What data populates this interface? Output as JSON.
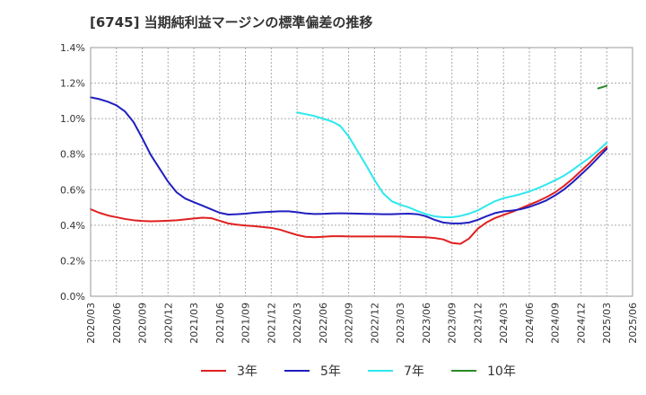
{
  "chart_data": {
    "type": "line",
    "title": "[6745]  当期純利益マージンの標準偏差の推移",
    "xlabel": "",
    "ylabel": "",
    "ylim": [
      0,
      1.4
    ],
    "y_unit": "%",
    "y_ticks": [
      0,
      0.2,
      0.4,
      0.6,
      0.8,
      1.0,
      1.2,
      1.4
    ],
    "y_tick_labels": [
      "0.0%",
      "0.2%",
      "0.4%",
      "0.6%",
      "0.8%",
      "1.0%",
      "1.2%",
      "1.4%"
    ],
    "x_tick_labels": [
      "2020/03",
      "2020/06",
      "2020/09",
      "2020/12",
      "2021/03",
      "2021/06",
      "2021/09",
      "2021/12",
      "2022/03",
      "2022/06",
      "2022/09",
      "2022/12",
      "2023/03",
      "2023/06",
      "2023/09",
      "2023/12",
      "2024/03",
      "2024/06",
      "2024/09",
      "2024/12",
      "2025/03",
      "2025/06"
    ],
    "grid": true,
    "legend_position": "bottom",
    "months": [
      "2020/03",
      "2020/04",
      "2020/05",
      "2020/06",
      "2020/07",
      "2020/08",
      "2020/09",
      "2020/10",
      "2020/11",
      "2020/12",
      "2021/01",
      "2021/02",
      "2021/03",
      "2021/04",
      "2021/05",
      "2021/06",
      "2021/07",
      "2021/08",
      "2021/09",
      "2021/10",
      "2021/11",
      "2021/12",
      "2022/01",
      "2022/02",
      "2022/03",
      "2022/04",
      "2022/05",
      "2022/06",
      "2022/07",
      "2022/08",
      "2022/09",
      "2022/10",
      "2022/11",
      "2022/12",
      "2023/01",
      "2023/02",
      "2023/03",
      "2023/04",
      "2023/05",
      "2023/06",
      "2023/07",
      "2023/08",
      "2023/09",
      "2023/10",
      "2023/11",
      "2023/12",
      "2024/01",
      "2024/02",
      "2024/03",
      "2024/04",
      "2024/05",
      "2024/06",
      "2024/07",
      "2024/08",
      "2024/09",
      "2024/10",
      "2024/11",
      "2024/12",
      "2025/01",
      "2025/02",
      "2025/03"
    ],
    "series": [
      {
        "name": "3年",
        "color": "#e02020",
        "values": [
          0.49,
          0.47,
          0.455,
          0.445,
          0.435,
          0.428,
          0.424,
          0.422,
          0.423,
          0.425,
          0.428,
          0.433,
          0.438,
          0.442,
          0.44,
          0.425,
          0.41,
          0.403,
          0.398,
          0.395,
          0.39,
          0.385,
          0.375,
          0.36,
          0.345,
          0.335,
          0.332,
          0.335,
          0.338,
          0.338,
          0.337,
          0.337,
          0.337,
          0.337,
          0.337,
          0.337,
          0.336,
          0.334,
          0.333,
          0.332,
          0.328,
          0.32,
          0.3,
          0.295,
          0.325,
          0.38,
          0.415,
          0.44,
          0.458,
          0.475,
          0.495,
          0.515,
          0.535,
          0.558,
          0.585,
          0.62,
          0.66,
          0.705,
          0.75,
          0.8,
          0.84
        ]
      },
      {
        "name": "5年",
        "color": "#1f1fbf",
        "values": [
          1.12,
          1.11,
          1.095,
          1.075,
          1.04,
          0.98,
          0.89,
          0.795,
          0.72,
          0.645,
          0.585,
          0.55,
          0.53,
          0.51,
          0.49,
          0.47,
          0.46,
          0.462,
          0.465,
          0.47,
          0.473,
          0.476,
          0.478,
          0.478,
          0.473,
          0.466,
          0.463,
          0.464,
          0.466,
          0.467,
          0.466,
          0.465,
          0.464,
          0.463,
          0.462,
          0.462,
          0.464,
          0.465,
          0.462,
          0.45,
          0.43,
          0.415,
          0.41,
          0.41,
          0.415,
          0.43,
          0.45,
          0.468,
          0.478,
          0.482,
          0.49,
          0.503,
          0.52,
          0.54,
          0.568,
          0.6,
          0.64,
          0.685,
          0.73,
          0.78,
          0.83
        ]
      },
      {
        "name": "7年",
        "color": "#2ee8ee",
        "values": [
          null,
          null,
          null,
          null,
          null,
          null,
          null,
          null,
          null,
          null,
          null,
          null,
          null,
          null,
          null,
          null,
          null,
          null,
          null,
          null,
          null,
          null,
          null,
          null,
          1.035,
          1.025,
          1.015,
          1.0,
          0.985,
          0.96,
          0.9,
          0.82,
          0.74,
          0.655,
          0.58,
          0.535,
          0.515,
          0.5,
          0.48,
          0.462,
          0.45,
          0.445,
          0.445,
          0.452,
          0.465,
          0.483,
          0.51,
          0.535,
          0.552,
          0.563,
          0.575,
          0.59,
          0.608,
          0.63,
          0.653,
          0.678,
          0.71,
          0.745,
          0.78,
          0.82,
          0.865
        ]
      },
      {
        "name": "10年",
        "color": "#2b8a2b",
        "values": [
          null,
          null,
          null,
          null,
          null,
          null,
          null,
          null,
          null,
          null,
          null,
          null,
          null,
          null,
          null,
          null,
          null,
          null,
          null,
          null,
          null,
          null,
          null,
          null,
          null,
          null,
          null,
          null,
          null,
          null,
          null,
          null,
          null,
          null,
          null,
          null,
          null,
          null,
          null,
          null,
          null,
          null,
          null,
          null,
          null,
          null,
          null,
          null,
          null,
          null,
          null,
          null,
          null,
          null,
          null,
          null,
          null,
          null,
          null,
          1.17,
          1.185
        ]
      }
    ]
  }
}
